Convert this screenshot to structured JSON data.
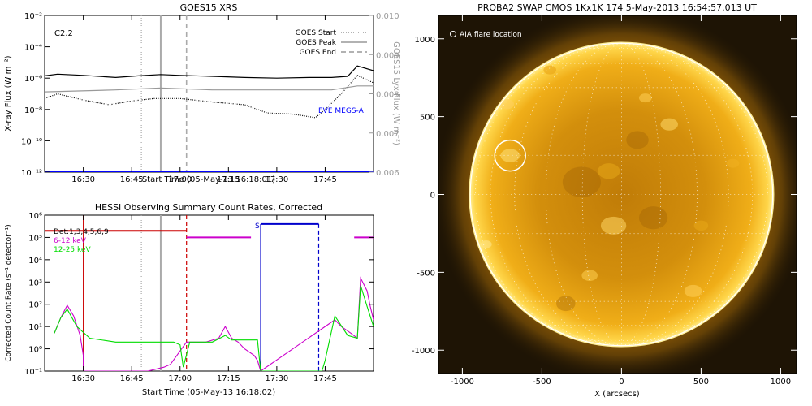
{
  "chart_data": [
    {
      "type": "line",
      "title": "GOES15 XRS",
      "xlabel": "Start Time (05-May-13 16:18:01)",
      "ylabel": "X-ray Flux (W m⁻²)",
      "ylabel_right": "GOES15 Lyx Flux (W m⁻²)",
      "y_scale": "log",
      "ylim": [
        1e-12,
        0.01
      ],
      "xlim": [
        "16:18",
        "18:00"
      ],
      "x_ticks": [
        "16:30",
        "16:45",
        "17:00",
        "17:15",
        "17:30",
        "17:45"
      ],
      "y_ticks": [
        "10⁻¹²",
        "10⁻¹⁰",
        "10⁻⁸",
        "10⁻⁶",
        "10⁻⁴",
        "10⁻²"
      ],
      "right_ylim": [
        0.006,
        0.01
      ],
      "right_ticks": [
        "0.006",
        "0.007",
        "0.008",
        "0.009",
        "0.010"
      ],
      "flare_class": "C2.2",
      "markers": {
        "goes_start": "16:48",
        "goes_peak": "16:54",
        "goes_end": "17:02"
      },
      "legend": [
        {
          "label": "GOES Start",
          "style": "dotted"
        },
        {
          "label": "GOES Peak",
          "style": "solid"
        },
        {
          "label": "GOES End",
          "style": "dashed"
        }
      ],
      "legend_position": "top-right",
      "annotations": [
        "EVE MEGS-A"
      ],
      "series": [
        {
          "id": "long",
          "color": "#000000",
          "style": "solid",
          "x": [
            "16:18",
            "16:22",
            "16:30",
            "16:40",
            "16:47",
            "16:54",
            "17:00",
            "17:10",
            "17:20",
            "17:30",
            "17:40",
            "17:47",
            "17:52",
            "17:55",
            "18:00"
          ],
          "y": [
            1.4e-06,
            1.8e-06,
            1.5e-06,
            1.1e-06,
            1.4e-06,
            1.7e-06,
            1.5e-06,
            1.3e-06,
            1.1e-06,
            1e-06,
            1.1e-06,
            1.1e-06,
            1.3e-06,
            6e-06,
            3e-06
          ]
        },
        {
          "id": "short",
          "color": "#000000",
          "style": "dotted",
          "x": [
            "16:18",
            "16:22",
            "16:30",
            "16:38",
            "16:45",
            "16:52",
            "17:00",
            "17:10",
            "17:20",
            "17:27",
            "17:35",
            "17:42",
            "17:45",
            "17:50",
            "17:55",
            "18:00"
          ],
          "y": [
            5e-08,
            1e-07,
            4e-08,
            2e-08,
            3.5e-08,
            5e-08,
            5e-08,
            3e-08,
            2e-08,
            6e-09,
            5e-09,
            3e-09,
            1e-08,
            1e-07,
            1.5e-06,
            5e-07
          ]
        },
        {
          "id": "lyman",
          "color": "#999999",
          "style": "solid",
          "x": [
            "16:18",
            "16:40",
            "16:54",
            "17:10",
            "17:30",
            "17:47",
            "17:55",
            "18:00"
          ],
          "y": [
            0.00805,
            0.0081,
            0.00815,
            0.0081,
            0.0081,
            0.0081,
            0.0082,
            0.0082
          ]
        },
        {
          "id": "eve",
          "color": "#0000ff",
          "style": "solid",
          "x": [
            "16:18",
            "18:00"
          ],
          "y": [
            1e-12,
            1e-12
          ]
        }
      ]
    },
    {
      "type": "line",
      "title": "HESSI Observing Summary Count Rates, Corrected",
      "xlabel": "Start Time (05-May-13 16:18:02)",
      "ylabel": "Corrected Count Rate (s⁻¹ detector⁻¹)",
      "y_scale": "log",
      "ylim": [
        0.1,
        1000000
      ],
      "xlim": [
        "16:18",
        "18:00"
      ],
      "x_ticks": [
        "16:30",
        "16:45",
        "17:00",
        "17:15",
        "17:30",
        "17:45"
      ],
      "y_ticks": [
        "10⁻¹",
        "10⁰",
        "10¹",
        "10²",
        "10³",
        "10⁴",
        "10⁵",
        "10⁶"
      ],
      "legend": [
        {
          "label": "Det:1,3,4,5,6,9",
          "color": "#000000"
        },
        {
          "label": "6-12 keV",
          "color": "#cc00cc"
        },
        {
          "label": "12-25 keV",
          "color": "#00dd00"
        }
      ],
      "legend_position": "top-left",
      "annotations": [
        "S"
      ],
      "markers": {
        "goes_start": "16:48",
        "goes_peak": "16:54",
        "goes_end": "17:02"
      },
      "series": [
        {
          "id": "6-12 keV",
          "color": "#cc00cc",
          "x": [
            "16:21",
            "16:23",
            "16:25",
            "16:27",
            "16:29",
            "16:30",
            "16:30",
            "16:50",
            "16:55",
            "16:57",
            "17:02",
            "17:08",
            "17:12",
            "17:14",
            "17:16",
            "17:18",
            "17:20",
            "17:23",
            "17:24",
            "17:25",
            "17:48",
            "17:50",
            "17:53",
            "17:55",
            "17:56",
            "17:58",
            "17:59",
            "18:00"
          ],
          "y": [
            5,
            25,
            90,
            30,
            4,
            0.5,
            0.1,
            0.1,
            0.15,
            0.2,
            2,
            2,
            3,
            10,
            3,
            2,
            1,
            0.5,
            0.3,
            0.1,
            20,
            10,
            5,
            3,
            1500,
            400,
            80,
            20
          ]
        },
        {
          "id": "12-25 keV",
          "color": "#00dd00",
          "x": [
            "16:21",
            "16:23",
            "16:25",
            "16:28",
            "16:32",
            "16:40",
            "16:50",
            "16:58",
            "17:00",
            "17:01",
            "17:03",
            "17:10",
            "17:14",
            "17:16",
            "17:20",
            "17:24",
            "17:25",
            "17:44",
            "17:45",
            "17:48",
            "17:52",
            "17:55",
            "17:56",
            "17:58",
            "18:00"
          ],
          "y": [
            5,
            25,
            60,
            10,
            3,
            2,
            2,
            2,
            1.5,
            0.15,
            2,
            2,
            4,
            2.5,
            2.5,
            2.5,
            0.1,
            0.1,
            0.3,
            30,
            4,
            3,
            700,
            80,
            10
          ]
        },
        {
          "id": "attenuator",
          "color": "#cc0000",
          "x": [
            "16:18",
            "17:02"
          ],
          "y": [
            200000,
            200000
          ]
        },
        {
          "id": "att-gap-magenta",
          "color": "#cc00cc",
          "x": [
            "17:02",
            "17:22"
          ],
          "y": [
            100000,
            100000
          ]
        },
        {
          "id": "saa",
          "color": "#0000cc",
          "x": [
            "17:25",
            "17:43"
          ],
          "y": [
            400000,
            400000
          ]
        },
        {
          "id": "tail-magenta",
          "color": "#cc00cc",
          "x": [
            "17:54",
            "18:00"
          ],
          "y": [
            100000,
            100000
          ]
        }
      ]
    },
    {
      "type": "heatmap",
      "title": "PROBA2 SWAP CMOS 1Kx1K 174   5-May-2013 16:54:57.013 UT",
      "xlabel": "X (arcsecs)",
      "ylabel": "Y (arcsecs)",
      "xlim": [
        -1150,
        1100
      ],
      "ylim": [
        -1150,
        1150
      ],
      "x_ticks": [
        "-1000",
        "-500",
        "0",
        "500",
        "1000"
      ],
      "y_ticks": [
        "-1000",
        "-500",
        "0",
        "500",
        "1000"
      ],
      "solar_radius_arcsec": 950,
      "annotations": [
        "AIA flare location"
      ],
      "flare_location": {
        "x": -700,
        "y": 250
      },
      "colors": {
        "disk": "#e8a410",
        "corona": "#5a3a05",
        "background": "#1e1405"
      }
    }
  ]
}
